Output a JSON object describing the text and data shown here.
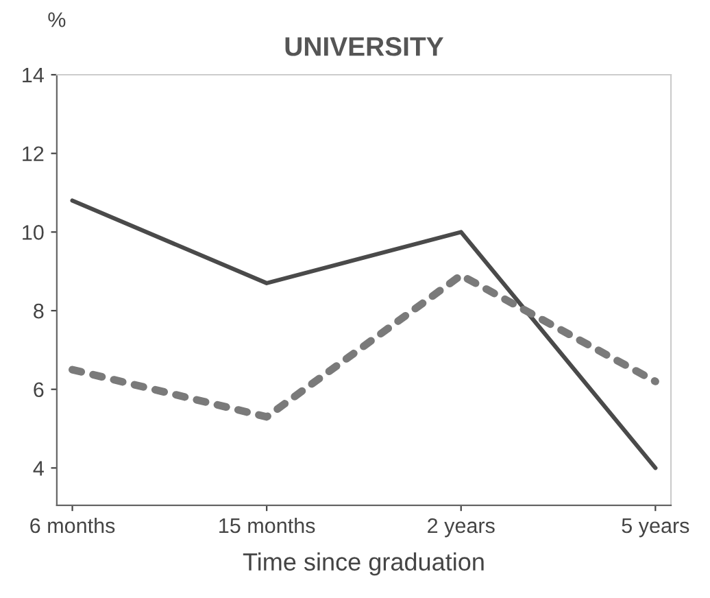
{
  "chart_data": {
    "type": "line",
    "title": "UNIVERSITY",
    "ylabel": "%",
    "xlabel": "Time since graduation",
    "categories": [
      "6 months",
      "15 months",
      "2 years",
      "5 years"
    ],
    "series": [
      {
        "color": "#4a4a4a",
        "line_style": "solid",
        "values": [
          10.8,
          8.7,
          10.0,
          4.0
        ]
      },
      {
        "color": "#7a7a7a",
        "line_style": "dotted",
        "values": [
          6.5,
          5.3,
          8.9,
          6.2
        ]
      }
    ],
    "ylim": [
      3.05,
      14
    ],
    "yticks": [
      4,
      6,
      8,
      10,
      12,
      14
    ],
    "grid": false,
    "legend": false,
    "marker": "none"
  }
}
